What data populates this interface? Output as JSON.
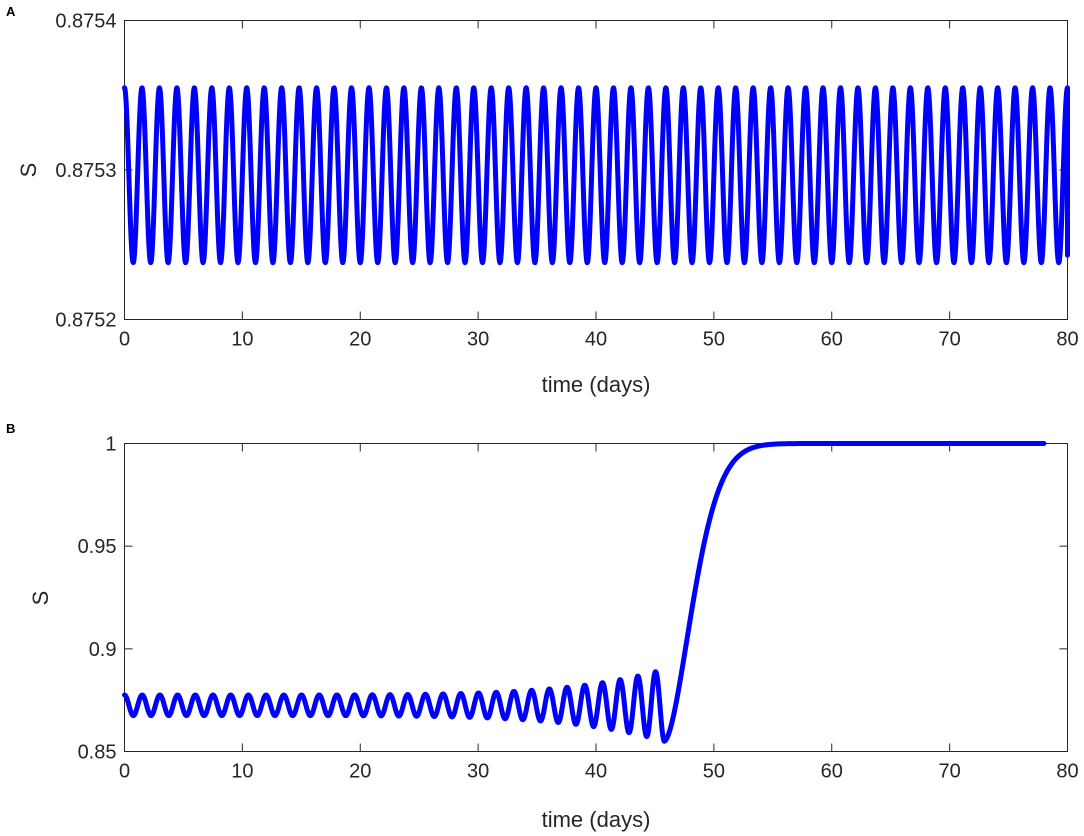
{
  "colors": {
    "series": "#0000ff",
    "axis": "#262626"
  },
  "chart_data": [
    {
      "panel": "A",
      "type": "line",
      "title": "",
      "xlabel": "time (days)",
      "ylabel": "S",
      "xlim": [
        0,
        80
      ],
      "ylim": [
        0.8752,
        0.8754
      ],
      "xticks": [
        0,
        10,
        20,
        30,
        40,
        50,
        60,
        70,
        80
      ],
      "xtick_labels": [
        "0",
        "10",
        "20",
        "30",
        "40",
        "50",
        "60",
        "70",
        "80"
      ],
      "yticks": [
        0.8752,
        0.8753,
        0.8754
      ],
      "ytick_labels": [
        "0.8752",
        "0.8753",
        "0.8754"
      ],
      "grid": false,
      "series": [
        {
          "style": "sustained oscillation",
          "x_range": [
            0,
            80
          ],
          "upper": 0.875355,
          "lower": 0.875238,
          "cycles": 54,
          "start_phase": "max",
          "end_value": 0.875243
        }
      ]
    },
    {
      "panel": "B",
      "type": "line",
      "title": "",
      "xlabel": "time (days)",
      "ylabel": "S",
      "xlim": [
        0,
        80
      ],
      "ylim": [
        0.85,
        1
      ],
      "xticks": [
        0,
        10,
        20,
        30,
        40,
        50,
        60,
        70,
        80
      ],
      "xtick_labels": [
        "0",
        "10",
        "20",
        "30",
        "40",
        "50",
        "60",
        "70",
        "80"
      ],
      "yticks": [
        0.85,
        0.9,
        0.95,
        1
      ],
      "ytick_labels": [
        "0.85",
        "0.9",
        "0.95",
        "1"
      ],
      "grid": false,
      "series": [
        {
          "style": "growing oscillation then rise to plateau",
          "x_range": [
            0,
            78
          ],
          "start_value": 0.875,
          "center": 0.8725,
          "initial_amplitude": 0.005,
          "final_amplitude": 0.0175,
          "cycles": 31,
          "oscillation_end_x": 45.8,
          "min_point": [
            45.8,
            0.855
          ],
          "rise_end_x": 58,
          "plateau": 1.0
        }
      ]
    }
  ]
}
